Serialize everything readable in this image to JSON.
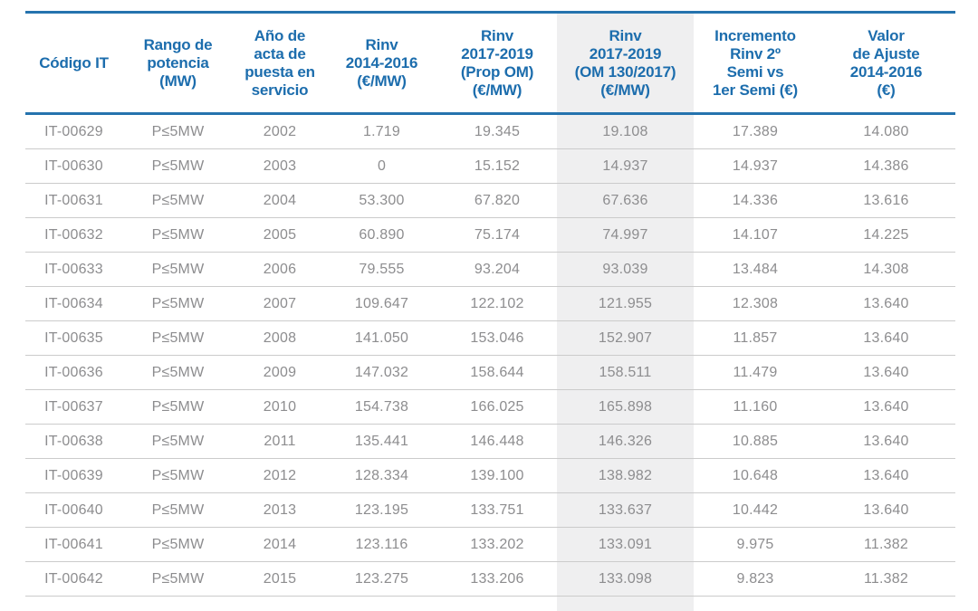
{
  "colors": {
    "header_text_blue": "#1c6dad",
    "rule_blue": "#2573ae",
    "body_text_gray": "#8d8d8f",
    "row_separator_gray": "#cbcbcb",
    "highlight_column_gray": "#efeff0"
  },
  "table": {
    "columns": [
      {
        "id": "codigo-it",
        "label": "Código IT"
      },
      {
        "id": "rango-potencia",
        "label": "Rango de\npotencia\n(MW)"
      },
      {
        "id": "ano-acta",
        "label": "Año de\nacta de\npuesta en\nservicio"
      },
      {
        "id": "rinv-2014-2016",
        "label": "Rinv\n2014-2016\n(€/MW)"
      },
      {
        "id": "rinv-2017-2019-prop-om",
        "label": "Rinv\n2017-2019\n(Prop OM)\n(€/MW)"
      },
      {
        "id": "rinv-2017-2019-om-130-2017",
        "label": "Rinv\n2017-2019\n(OM 130/2017)\n(€/MW)",
        "highlighted": true
      },
      {
        "id": "incremento-rinv",
        "label": "Incremento\nRinv 2º\nSemi vs\n1er Semi (€)"
      },
      {
        "id": "valor-ajuste",
        "label": "Valor\nde Ajuste\n2014-2016\n(€)"
      }
    ],
    "rows": [
      [
        "IT-00629",
        "P≤5MW",
        "2002",
        "1.719",
        "19.345",
        "19.108",
        "17.389",
        "14.080"
      ],
      [
        "IT-00630",
        "P≤5MW",
        "2003",
        "0",
        "15.152",
        "14.937",
        "14.937",
        "14.386"
      ],
      [
        "IT-00631",
        "P≤5MW",
        "2004",
        "53.300",
        "67.820",
        "67.636",
        "14.336",
        "13.616"
      ],
      [
        "IT-00632",
        "P≤5MW",
        "2005",
        "60.890",
        "75.174",
        "74.997",
        "14.107",
        "14.225"
      ],
      [
        "IT-00633",
        "P≤5MW",
        "2006",
        "79.555",
        "93.204",
        "93.039",
        "13.484",
        "14.308"
      ],
      [
        "IT-00634",
        "P≤5MW",
        "2007",
        "109.647",
        "122.102",
        "121.955",
        "12.308",
        "13.640"
      ],
      [
        "IT-00635",
        "P≤5MW",
        "2008",
        "141.050",
        "153.046",
        "152.907",
        "11.857",
        "13.640"
      ],
      [
        "IT-00636",
        "P≤5MW",
        "2009",
        "147.032",
        "158.644",
        "158.511",
        "11.479",
        "13.640"
      ],
      [
        "IT-00637",
        "P≤5MW",
        "2010",
        "154.738",
        "166.025",
        "165.898",
        "11.160",
        "13.640"
      ],
      [
        "IT-00638",
        "P≤5MW",
        "2011",
        "135.441",
        "146.448",
        "146.326",
        "10.885",
        "13.640"
      ],
      [
        "IT-00639",
        "P≤5MW",
        "2012",
        "128.334",
        "139.100",
        "138.982",
        "10.648",
        "13.640"
      ],
      [
        "IT-00640",
        "P≤5MW",
        "2013",
        "123.195",
        "133.751",
        "133.637",
        "10.442",
        "13.640"
      ],
      [
        "IT-00641",
        "P≤5MW",
        "2014",
        "123.116",
        "133.202",
        "133.091",
        "9.975",
        "11.382"
      ],
      [
        "IT-00642",
        "P≤5MW",
        "2015",
        "123.275",
        "133.206",
        "133.098",
        "9.823",
        "11.382"
      ]
    ]
  }
}
